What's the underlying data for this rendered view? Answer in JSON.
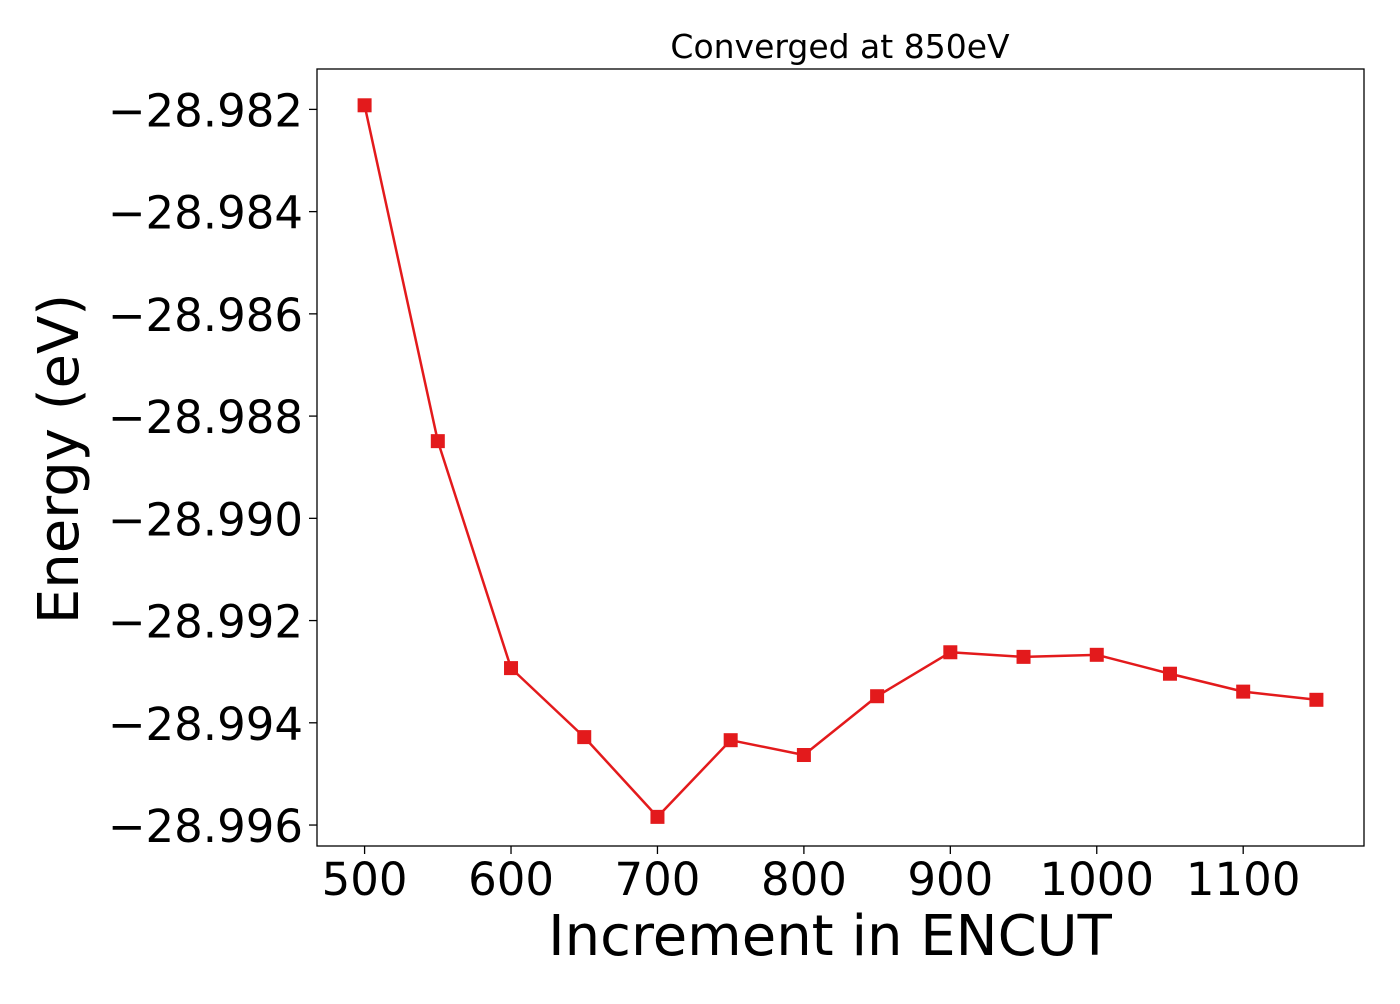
{
  "chart_data": {
    "type": "line",
    "title": "Converged at 850eV",
    "xlabel": "Increment in ENCUT",
    "ylabel": "Energy (eV)",
    "x": [
      500,
      550,
      600,
      650,
      700,
      750,
      800,
      850,
      900,
      950,
      1000,
      1050,
      1100,
      1150
    ],
    "series": [
      {
        "values": [
          -28.98192,
          -28.98849,
          -28.99293,
          -28.99428,
          -28.99584,
          -28.99434,
          -28.99463,
          -28.99348,
          -28.99262,
          -28.99271,
          -28.99267,
          -28.99304,
          -28.99339,
          -28.99355
        ],
        "color": "#e31a1c",
        "marker": "square"
      }
    ],
    "xlim": [
      467.5,
      1182.5
    ],
    "ylim": [
      -28.99641,
      -28.98121
    ],
    "x_ticks": [
      500,
      600,
      700,
      800,
      900,
      1000,
      1100
    ],
    "x_tick_labels": [
      "500",
      "600",
      "700",
      "800",
      "900",
      "1000",
      "1100"
    ],
    "y_ticks": [
      -28.982,
      -28.984,
      -28.986,
      -28.988,
      -28.99,
      -28.992,
      -28.994,
      -28.996
    ],
    "y_tick_labels": [
      "−28.982",
      "−28.984",
      "−28.986",
      "−28.988",
      "−28.990",
      "−28.992",
      "−28.994",
      "−28.996"
    ],
    "grid": false,
    "legend": "none"
  }
}
